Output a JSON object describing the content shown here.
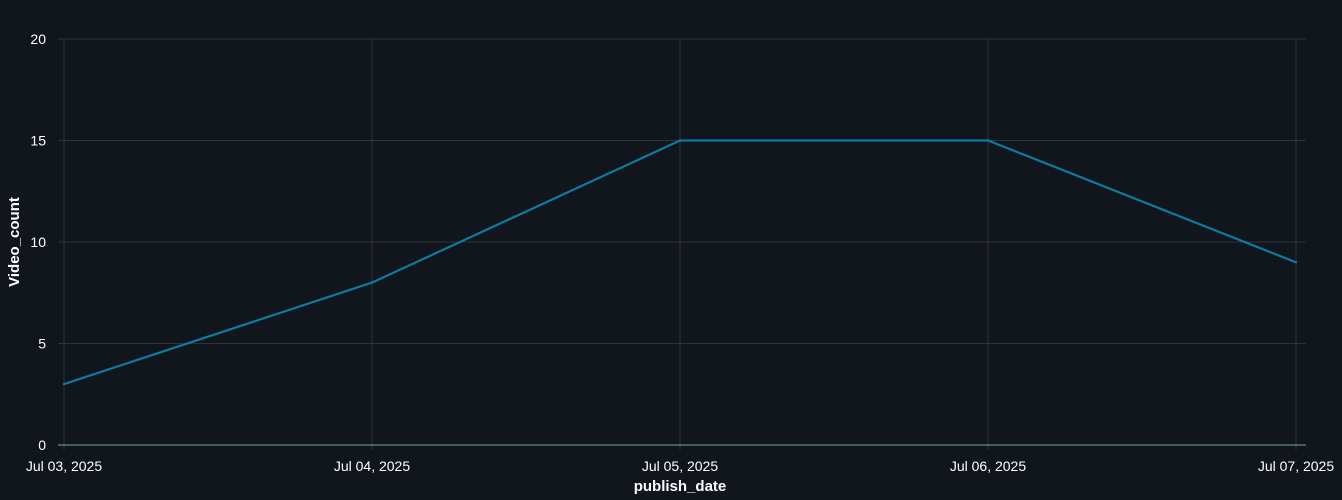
{
  "chart_data": {
    "type": "line",
    "title": "",
    "xlabel": "publish_date",
    "ylabel": "Video_count",
    "x": [
      "Jul 03, 2025",
      "Jul 04, 2025",
      "Jul 05, 2025",
      "Jul 06, 2025",
      "Jul 07, 2025"
    ],
    "x_tick_labels": [
      "Jul 03, 2025",
      "Jul 04, 2025",
      "Jul 05, 2025",
      "Jul 06, 2025",
      "Jul 07, 2025"
    ],
    "series": [
      {
        "values": [
          3,
          8,
          15,
          15,
          9
        ],
        "color": "#0e7aa0"
      }
    ],
    "ylim": [
      0,
      20
    ],
    "y_ticks": [
      0,
      5,
      10,
      15,
      20
    ],
    "grid": true,
    "legend": "none"
  },
  "colors": {
    "background": "#11161d",
    "grid": "#2e3338",
    "baseline": "#7fa3b3",
    "line": "#0e7aa0",
    "text": "#ffffff"
  }
}
